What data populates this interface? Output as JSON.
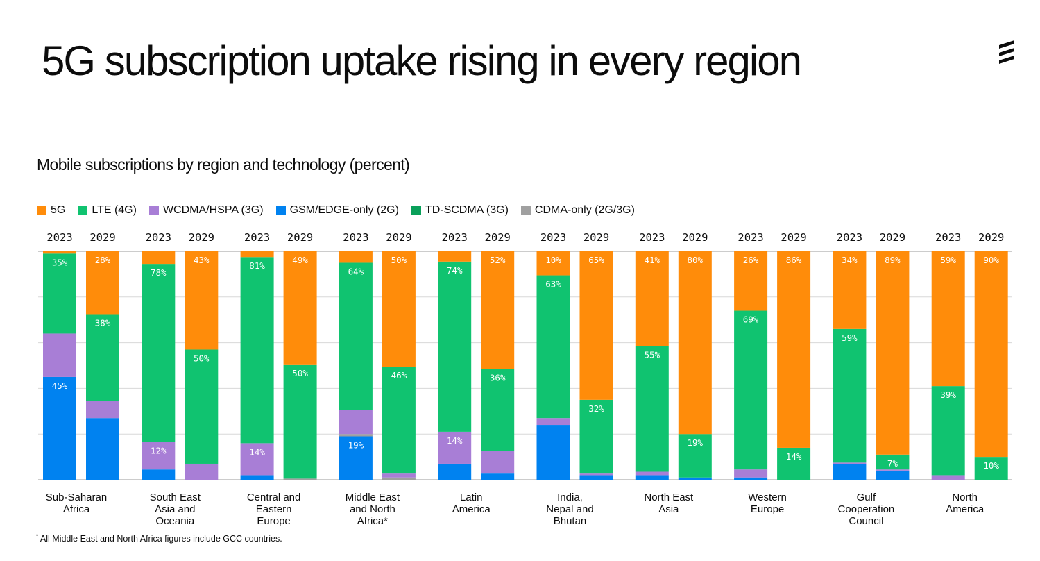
{
  "title": "5G subscription uptake rising in every region",
  "chart_title": "Mobile subscriptions by region and technology (percent)",
  "footnote_marker": "*",
  "footnote": "All Middle East and North Africa figures include GCC countries.",
  "brand_icon": "ericsson-logo-icon",
  "colors": {
    "5g": "#ff8c0a",
    "lte": "#10c370",
    "wcdma": "#a87ed6",
    "gsm": "#0082f0",
    "tdscdma": "#0aa05a",
    "cdma": "#a0a0a0"
  },
  "chart_data": {
    "type": "bar",
    "stacked": true,
    "stack_order_bottom_to_top": [
      "GSM/EDGE-only (2G)",
      "CDMA-only (2G/3G)",
      "TD-SCDMA (3G)",
      "WCDMA/HSPA (3G)",
      "LTE (4G)",
      "5G"
    ],
    "legend": [
      {
        "key": "5g",
        "label": "5G"
      },
      {
        "key": "lte",
        "label": "LTE (4G)"
      },
      {
        "key": "wcdma",
        "label": "WCDMA/HSPA (3G)"
      },
      {
        "key": "gsm",
        "label": "GSM/EDGE-only (2G)"
      },
      {
        "key": "tdscdma",
        "label": "TD-SCDMA (3G)"
      },
      {
        "key": "cdma",
        "label": "CDMA-only (2G/3G)"
      }
    ],
    "legend_position": "top-left",
    "ylim": [
      0,
      100
    ],
    "grid": true,
    "regions": [
      {
        "name": [
          "Sub-Saharan",
          "Africa"
        ],
        "bars": [
          {
            "year": "2023",
            "values": {
              "gsm": 45,
              "cdma": 0,
              "tdscdma": 0,
              "wcdma": 19,
              "lte": 35,
              "5g": 1
            },
            "labels": {
              "gsm": "45%",
              "lte": "35%"
            }
          },
          {
            "year": "2029",
            "values": {
              "gsm": 27,
              "cdma": 0,
              "tdscdma": 0,
              "wcdma": 7.5,
              "lte": 38,
              "5g": 27.5
            },
            "labels": {
              "lte": "38%",
              "5g": "28%"
            }
          }
        ]
      },
      {
        "name": [
          "South East",
          "Asia and",
          "Oceania"
        ],
        "bars": [
          {
            "year": "2023",
            "values": {
              "gsm": 4.5,
              "cdma": 0,
              "tdscdma": 0,
              "wcdma": 12,
              "lte": 78,
              "5g": 5.5
            },
            "labels": {
              "wcdma": "12%",
              "lte": "78%"
            }
          },
          {
            "year": "2029",
            "values": {
              "gsm": 0,
              "cdma": 0,
              "tdscdma": 0,
              "wcdma": 7,
              "lte": 50,
              "5g": 43
            },
            "labels": {
              "lte": "50%",
              "5g": "43%"
            }
          }
        ]
      },
      {
        "name": [
          "Central and",
          "Eastern",
          "Europe"
        ],
        "bars": [
          {
            "year": "2023",
            "values": {
              "gsm": 2,
              "cdma": 0,
              "tdscdma": 0,
              "wcdma": 14,
              "lte": 81.5,
              "5g": 2.5
            },
            "labels": {
              "wcdma": "14%",
              "lte": "81%"
            }
          },
          {
            "year": "2029",
            "values": {
              "gsm": 0,
              "cdma": 0.5,
              "tdscdma": 0,
              "wcdma": 0,
              "lte": 50,
              "5g": 49.5
            },
            "labels": {
              "lte": "50%",
              "5g": "49%"
            }
          }
        ]
      },
      {
        "name": [
          "Middle East",
          "and North",
          "Africa*"
        ],
        "bars": [
          {
            "year": "2023",
            "values": {
              "gsm": 19,
              "cdma": 1,
              "tdscdma": 0,
              "wcdma": 10.5,
              "lte": 64.5,
              "5g": 5
            },
            "labels": {
              "gsm": "19%",
              "lte": "64%"
            }
          },
          {
            "year": "2029",
            "values": {
              "gsm": 0,
              "cdma": 1,
              "tdscdma": 0,
              "wcdma": 2,
              "lte": 46.5,
              "5g": 50.5
            },
            "labels": {
              "lte": "46%",
              "5g": "50%"
            }
          }
        ]
      },
      {
        "name": [
          "Latin",
          "America"
        ],
        "bars": [
          {
            "year": "2023",
            "values": {
              "gsm": 7,
              "cdma": 0,
              "tdscdma": 0,
              "wcdma": 14,
              "lte": 74.5,
              "5g": 4.5
            },
            "labels": {
              "wcdma": "14%",
              "lte": "74%"
            }
          },
          {
            "year": "2029",
            "values": {
              "gsm": 3,
              "cdma": 0,
              "tdscdma": 0,
              "wcdma": 9.5,
              "lte": 36,
              "5g": 51.5
            },
            "labels": {
              "lte": "36%",
              "5g": "52%"
            }
          }
        ]
      },
      {
        "name": [
          "India,",
          "Nepal and",
          "Bhutan"
        ],
        "bars": [
          {
            "year": "2023",
            "values": {
              "gsm": 24,
              "cdma": 0,
              "tdscdma": 0,
              "wcdma": 3,
              "lte": 62.5,
              "5g": 10.5
            },
            "labels": {
              "lte": "63%",
              "5g": "10%"
            }
          },
          {
            "year": "2029",
            "values": {
              "gsm": 2,
              "cdma": 0,
              "tdscdma": 0,
              "wcdma": 1,
              "lte": 32,
              "5g": 65
            },
            "labels": {
              "lte": "32%",
              "5g": "65%"
            }
          }
        ]
      },
      {
        "name": [
          "North East",
          "Asia"
        ],
        "bars": [
          {
            "year": "2023",
            "values": {
              "gsm": 2,
              "cdma": 0,
              "tdscdma": 0,
              "wcdma": 1.5,
              "lte": 55,
              "5g": 41.5
            },
            "labels": {
              "lte": "55%",
              "5g": "41%"
            }
          },
          {
            "year": "2029",
            "values": {
              "gsm": 1,
              "cdma": 0,
              "tdscdma": 0,
              "wcdma": 0,
              "lte": 19,
              "5g": 80
            },
            "labels": {
              "lte": "19%",
              "5g": "80%"
            }
          }
        ]
      },
      {
        "name": [
          "Western",
          "Europe"
        ],
        "bars": [
          {
            "year": "2023",
            "values": {
              "gsm": 1,
              "cdma": 0,
              "tdscdma": 0,
              "wcdma": 3.5,
              "lte": 69.5,
              "5g": 26
            },
            "labels": {
              "lte": "69%",
              "5g": "26%"
            }
          },
          {
            "year": "2029",
            "values": {
              "gsm": 0,
              "cdma": 0,
              "tdscdma": 0,
              "wcdma": 0,
              "lte": 14,
              "5g": 86
            },
            "labels": {
              "lte": "14%",
              "5g": "86%"
            }
          }
        ]
      },
      {
        "name": [
          "Gulf",
          "Cooperation",
          "Council"
        ],
        "bars": [
          {
            "year": "2023",
            "values": {
              "gsm": 7,
              "cdma": 0,
              "tdscdma": 0,
              "wcdma": 0.5,
              "lte": 58.5,
              "5g": 34
            },
            "labels": {
              "lte": "59%",
              "5g": "34%"
            }
          },
          {
            "year": "2029",
            "values": {
              "gsm": 4,
              "cdma": 0,
              "tdscdma": 0,
              "wcdma": 0.5,
              "lte": 6.5,
              "5g": 89
            },
            "labels": {
              "lte": "7%",
              "5g": "89%"
            }
          }
        ]
      },
      {
        "name": [
          "North",
          "America"
        ],
        "bars": [
          {
            "year": "2023",
            "values": {
              "gsm": 0,
              "cdma": 0,
              "tdscdma": 0,
              "wcdma": 2,
              "lte": 39,
              "5g": 59
            },
            "labels": {
              "lte": "39%",
              "5g": "59%"
            }
          },
          {
            "year": "2029",
            "values": {
              "gsm": 0,
              "cdma": 0,
              "tdscdma": 0,
              "wcdma": 0,
              "lte": 10,
              "5g": 90
            },
            "labels": {
              "lte": "10%",
              "5g": "90%"
            }
          }
        ]
      }
    ]
  }
}
